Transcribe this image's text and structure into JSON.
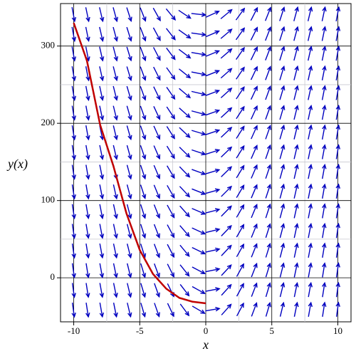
{
  "chart_data": {
    "type": "line",
    "x_label": "x",
    "y_label": "y(x)",
    "x": [
      -10,
      -9,
      -8,
      -7,
      -6,
      -5,
      -4,
      -3,
      -2,
      -1,
      0
    ],
    "series": [
      {
        "name": "y(x)",
        "color": "#c00000",
        "values": [
          330,
          281,
          198,
          145,
          83,
          36,
          5,
          -14,
          -26,
          -31,
          -33
        ]
      }
    ],
    "xlim": [
      -11,
      11
    ],
    "ylim": [
      -57,
      355
    ],
    "xticks": [
      -10,
      -5,
      0,
      5,
      10
    ],
    "yticks": [
      0,
      100,
      200,
      300
    ],
    "grid": true,
    "field_color": "#0000c0"
  }
}
